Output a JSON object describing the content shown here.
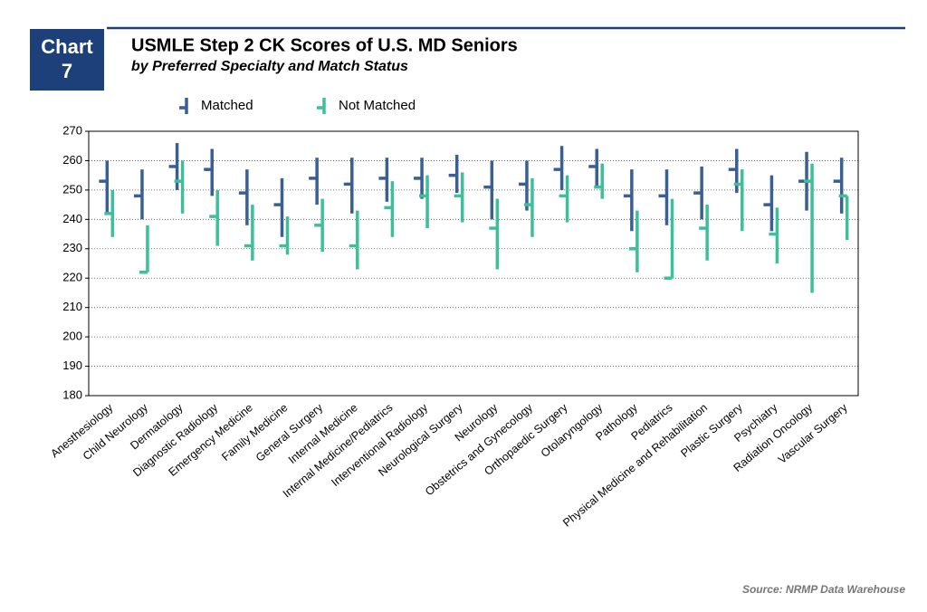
{
  "chart_data": {
    "type": "range",
    "badge_label": "Chart",
    "badge_number": "7",
    "title": "USMLE Step 2 CK Scores of U.S. MD Seniors",
    "subtitle": "by Preferred Specialty and Match Status",
    "source": "Source: NRMP Data Warehouse",
    "categories": [
      "Anesthesiology",
      "Child Neurology",
      "Dermatology",
      "Diagnostic Radiology",
      "Emergency Medicine",
      "Family Medicine",
      "General Surgery",
      "Internal Medicine",
      "Internal Medicine/Pediatrics",
      "Interventional Radiology",
      "Neurological Surgery",
      "Neurology",
      "Obstetrics and Gynecology",
      "Orthopaedic Surgery",
      "Otolaryngology",
      "Pathology",
      "Pediatrics",
      "Physical Medicine and Rehabilitation",
      "Plastic Surgery",
      "Psychiatry",
      "Radiation Oncology",
      "Vascular Surgery"
    ],
    "series": [
      {
        "name": "Matched",
        "color": "#3a5f94",
        "low": [
          242,
          240,
          250,
          248,
          238,
          234,
          245,
          242,
          246,
          247,
          249,
          240,
          243,
          250,
          251,
          236,
          238,
          240,
          249,
          236,
          243,
          242
        ],
        "high": [
          260,
          257,
          266,
          264,
          257,
          254,
          261,
          261,
          261,
          261,
          262,
          260,
          260,
          265,
          264,
          257,
          257,
          258,
          264,
          255,
          263,
          261
        ],
        "mean": [
          253,
          248,
          258,
          257,
          249,
          245,
          254,
          252,
          254,
          254,
          255,
          251,
          252,
          257,
          258,
          248,
          248,
          249,
          257,
          245,
          253,
          253
        ]
      },
      {
        "name": "Not Matched",
        "color": "#3dbf9a",
        "low": [
          234,
          222,
          242,
          231,
          226,
          228,
          229,
          223,
          234,
          237,
          239,
          223,
          234,
          239,
          247,
          222,
          220,
          226,
          236,
          225,
          215,
          233
        ],
        "high": [
          250,
          238,
          260,
          250,
          245,
          241,
          247,
          243,
          253,
          255,
          256,
          247,
          254,
          255,
          259,
          243,
          247,
          245,
          257,
          244,
          259,
          248
        ],
        "mean": [
          242,
          222,
          253,
          241,
          231,
          231,
          238,
          231,
          244,
          248,
          248,
          237,
          245,
          248,
          251,
          230,
          220,
          237,
          252,
          235,
          253,
          248
        ]
      }
    ],
    "ylim": [
      180,
      270
    ],
    "yticks": [
      180,
      190,
      200,
      210,
      220,
      230,
      240,
      250,
      260,
      270
    ],
    "grid": true
  }
}
